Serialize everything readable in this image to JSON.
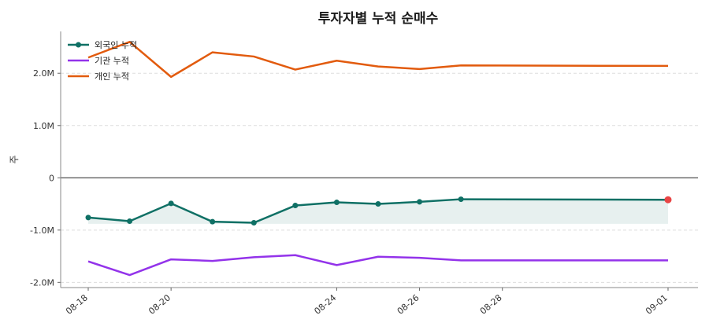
{
  "chart_data": {
    "type": "line",
    "title": "투자자별 누적 순매수",
    "ylabel": "주",
    "xlabel": "",
    "x": [
      "2024-08-18",
      "2024-08-19",
      "2024-08-20",
      "2024-08-21",
      "2024-08-22",
      "2024-08-23",
      "2024-08-24",
      "2024-08-25",
      "2024-08-26",
      "2024-08-27",
      "2024-08-28",
      "2024-08-29",
      "2024-08-30",
      "2024-08-31",
      "2024-09-01"
    ],
    "x_tick_labels": [
      {
        "x": "2024-08-18",
        "label": "08-18"
      },
      {
        "x": "2024-08-20",
        "label": "08-20"
      },
      {
        "x": "2024-08-24",
        "label": "08-24"
      },
      {
        "x": "2024-08-26",
        "label": "08-26"
      },
      {
        "x": "2024-08-28",
        "label": "08-28"
      },
      {
        "x": "2024-09-01",
        "label": "09-01"
      }
    ],
    "y_ticks": [
      {
        "value": 2000000,
        "label": "2.0M"
      },
      {
        "value": 1000000,
        "label": "1.0M"
      },
      {
        "value": 0,
        "label": "0"
      },
      {
        "value": -1000000,
        "label": "-1.0M"
      },
      {
        "value": -2000000,
        "label": "-2.0M"
      }
    ],
    "ylim": [
      -2100000,
      2800000
    ],
    "grid": "horizontal-dashed",
    "legend_position": "top-left",
    "series": [
      {
        "name": "외국인 누적",
        "color": "#0f7065",
        "markers": true,
        "fill_to": -880000,
        "highlight_last_color": "#e84545",
        "points": [
          {
            "x": "2024-08-18",
            "y": -760000
          },
          {
            "x": "2024-08-19",
            "y": -830000
          },
          {
            "x": "2024-08-20",
            "y": -490000
          },
          {
            "x": "2024-08-21",
            "y": -840000
          },
          {
            "x": "2024-08-22",
            "y": -860000
          },
          {
            "x": "2024-08-23",
            "y": -530000
          },
          {
            "x": "2024-08-24",
            "y": -470000
          },
          {
            "x": "2024-08-25",
            "y": -500000
          },
          {
            "x": "2024-08-26",
            "y": -460000
          },
          {
            "x": "2024-08-27",
            "y": -410000
          },
          {
            "x": "2024-09-01",
            "y": -420000
          }
        ]
      },
      {
        "name": "기관 누적",
        "color": "#9333ea",
        "markers": false,
        "points": [
          {
            "x": "2024-08-18",
            "y": -1600000
          },
          {
            "x": "2024-08-19",
            "y": -1860000
          },
          {
            "x": "2024-08-20",
            "y": -1560000
          },
          {
            "x": "2024-08-21",
            "y": -1590000
          },
          {
            "x": "2024-08-22",
            "y": -1520000
          },
          {
            "x": "2024-08-23",
            "y": -1480000
          },
          {
            "x": "2024-08-24",
            "y": -1670000
          },
          {
            "x": "2024-08-25",
            "y": -1510000
          },
          {
            "x": "2024-08-26",
            "y": -1530000
          },
          {
            "x": "2024-08-27",
            "y": -1580000
          },
          {
            "x": "2024-09-01",
            "y": -1580000
          }
        ]
      },
      {
        "name": "개인 누적",
        "color": "#e25b0e",
        "markers": false,
        "points": [
          {
            "x": "2024-08-18",
            "y": 2300000
          },
          {
            "x": "2024-08-19",
            "y": 2600000
          },
          {
            "x": "2024-08-20",
            "y": 1930000
          },
          {
            "x": "2024-08-21",
            "y": 2400000
          },
          {
            "x": "2024-08-22",
            "y": 2320000
          },
          {
            "x": "2024-08-23",
            "y": 2070000
          },
          {
            "x": "2024-08-24",
            "y": 2240000
          },
          {
            "x": "2024-08-25",
            "y": 2130000
          },
          {
            "x": "2024-08-26",
            "y": 2080000
          },
          {
            "x": "2024-08-27",
            "y": 2150000
          },
          {
            "x": "2024-09-01",
            "y": 2140000
          }
        ]
      }
    ]
  }
}
